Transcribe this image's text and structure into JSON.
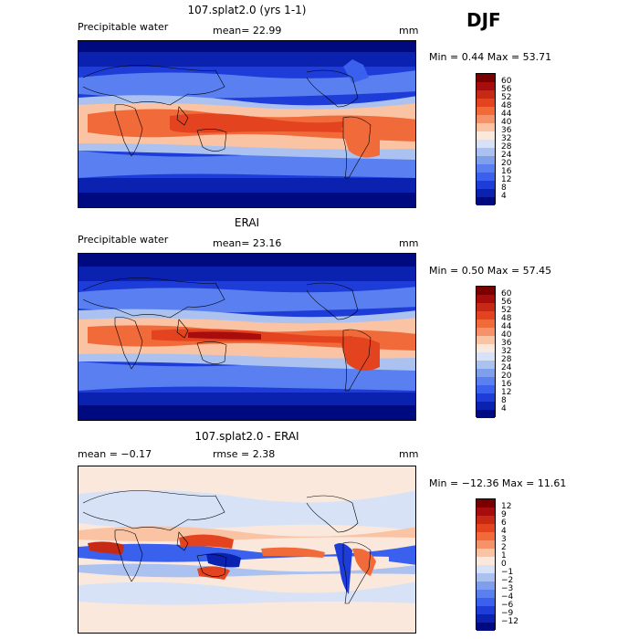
{
  "season": "DJF",
  "panels": [
    {
      "id": "model",
      "title": "107.splat2.0 (yrs 1-1)",
      "variable": "Precipitable water",
      "stats_left": "",
      "stats": "mean=  22.99",
      "units": "mm",
      "minmax": "Min =   0.44 Max =  53.71",
      "levels": [
        "60",
        "56",
        "52",
        "48",
        "44",
        "40",
        "36",
        "32",
        "28",
        "24",
        "20",
        "16",
        "12",
        "8",
        "4"
      ],
      "colors": [
        "#7a0000",
        "#a80d0d",
        "#c62a14",
        "#e3441f",
        "#f06a3a",
        "#f6926a",
        "#f9c3a4",
        "#fbe8dc",
        "#d7e2f6",
        "#abc2f0",
        "#7f9fed",
        "#5a7ff0",
        "#3a60ee",
        "#1e3cd8",
        "#0b22b0",
        "#000a80"
      ]
    },
    {
      "id": "obs",
      "title": "ERAI",
      "variable": "Precipitable water",
      "stats_left": "",
      "stats": "mean=  23.16",
      "units": "mm",
      "minmax": "Min =   0.50 Max =  57.45",
      "levels": [
        "60",
        "56",
        "52",
        "48",
        "44",
        "40",
        "36",
        "32",
        "28",
        "24",
        "20",
        "16",
        "12",
        "8",
        "4"
      ],
      "colors": [
        "#7a0000",
        "#a80d0d",
        "#c62a14",
        "#e3441f",
        "#f06a3a",
        "#f6926a",
        "#f9c3a4",
        "#fbe8dc",
        "#d7e2f6",
        "#abc2f0",
        "#7f9fed",
        "#5a7ff0",
        "#3a60ee",
        "#1e3cd8",
        "#0b22b0",
        "#000a80"
      ]
    },
    {
      "id": "diff",
      "title": "107.splat2.0 - ERAI",
      "variable": "",
      "stats_left": "mean =   −0.17",
      "stats": "rmse =    2.38",
      "units": "mm",
      "minmax": "Min = −12.36 Max =  11.61",
      "levels": [
        "12",
        "9",
        "6",
        "4",
        "3",
        "2",
        "1",
        "0",
        "−1",
        "−2",
        "−3",
        "−4",
        "−6",
        "−9",
        "−12"
      ],
      "colors": [
        "#7a0000",
        "#a80d0d",
        "#c62a14",
        "#e3441f",
        "#f06a3a",
        "#f6926a",
        "#f9c3a4",
        "#fbe8dc",
        "#d7e2f6",
        "#abc2f0",
        "#7f9fed",
        "#5a7ff0",
        "#3a60ee",
        "#1e3cd8",
        "#0b22b0",
        "#000a80"
      ]
    }
  ]
}
